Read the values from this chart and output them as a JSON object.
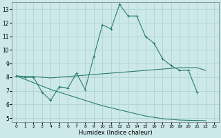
{
  "xlabel": "Humidex (Indice chaleur)",
  "x_values": [
    0,
    1,
    2,
    3,
    4,
    5,
    6,
    7,
    8,
    9,
    10,
    11,
    12,
    13,
    14,
    15,
    16,
    17,
    18,
    19,
    20,
    21,
    22
  ],
  "line1": [
    8.1,
    8.0,
    8.0,
    6.9,
    6.3,
    7.3,
    7.2,
    8.3,
    7.1,
    9.5,
    11.85,
    11.55,
    13.35,
    12.5,
    12.5,
    11.0,
    10.5,
    9.35,
    8.85,
    8.5,
    8.5,
    6.9,
    null
  ],
  "line2": [
    8.1,
    8.05,
    8.05,
    8.0,
    7.95,
    8.0,
    8.05,
    8.1,
    8.15,
    8.2,
    8.25,
    8.3,
    8.35,
    8.4,
    8.45,
    8.5,
    8.55,
    8.6,
    8.65,
    8.7,
    8.7,
    8.7,
    8.5
  ],
  "line3": [
    8.1,
    7.85,
    7.6,
    7.35,
    7.1,
    6.9,
    6.7,
    6.5,
    6.3,
    6.1,
    5.9,
    5.75,
    5.6,
    5.45,
    5.3,
    5.15,
    5.05,
    4.95,
    4.9,
    4.85,
    4.83,
    4.82,
    4.8
  ],
  "line_color": "#2a7d6e",
  "bg_color": "#cce8e8",
  "grid_color": "#aacfcf",
  "ylim": [
    4.7,
    13.5
  ],
  "xlim": [
    -0.5,
    23.5
  ],
  "yticks": [
    5,
    6,
    7,
    8,
    9,
    10,
    11,
    12,
    13
  ],
  "xticks": [
    0,
    1,
    2,
    3,
    4,
    5,
    6,
    7,
    8,
    9,
    10,
    11,
    12,
    13,
    14,
    15,
    16,
    17,
    18,
    19,
    20,
    21,
    22,
    23
  ]
}
